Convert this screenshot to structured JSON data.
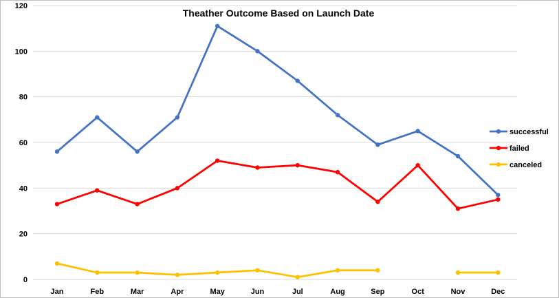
{
  "chart_data": {
    "type": "line",
    "title": "Theather Outcome Based on Launch Date",
    "xlabel": "",
    "ylabel": "",
    "categories": [
      "Jan",
      "Feb",
      "Mar",
      "Apr",
      "May",
      "Jun",
      "Jul",
      "Aug",
      "Sep",
      "Oct",
      "Nov",
      "Dec"
    ],
    "ylim": [
      0,
      120
    ],
    "yticks": [
      0,
      20,
      40,
      60,
      80,
      100,
      120
    ],
    "grid": true,
    "legend_position": "right",
    "series": [
      {
        "name": "successful",
        "color": "#4472C4",
        "values": [
          56,
          71,
          56,
          71,
          111,
          100,
          87,
          72,
          59,
          65,
          54,
          37
        ]
      },
      {
        "name": "failed",
        "color": "#FF0000",
        "values": [
          33,
          39,
          33,
          40,
          52,
          49,
          50,
          47,
          34,
          50,
          31,
          35
        ]
      },
      {
        "name": "canceled",
        "color": "#FFC000",
        "values": [
          7,
          3,
          3,
          2,
          3,
          4,
          1,
          4,
          4,
          null,
          3,
          3
        ]
      }
    ]
  }
}
